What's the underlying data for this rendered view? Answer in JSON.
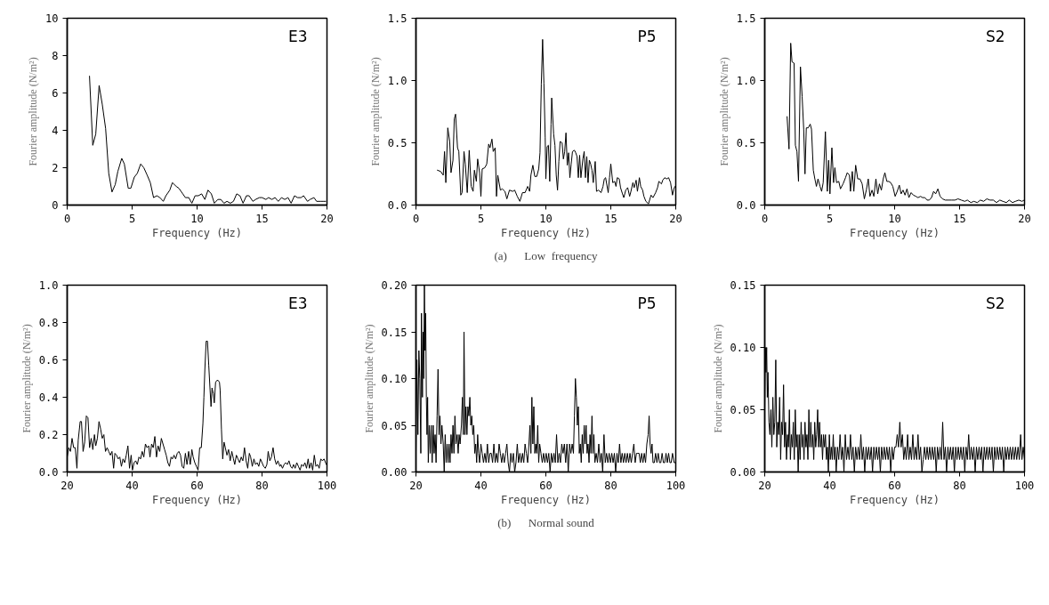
{
  "chart_data": [
    {
      "type": "line",
      "title": "E3",
      "xlabel": "Frequency (Hz)",
      "ylabel": "Fourier amplitude (N/m²)",
      "color": "#000000",
      "grid": false,
      "xlim": [
        0,
        20
      ],
      "ylim": [
        0,
        10
      ],
      "xticks": [
        0,
        5,
        10,
        15,
        20
      ],
      "yticks": [
        0,
        2,
        4,
        6,
        8,
        10
      ],
      "x": [
        1.72,
        1.97,
        2.2,
        2.46,
        2.7,
        2.96,
        3.2,
        3.45,
        3.7,
        3.9,
        4.2,
        4.4,
        4.7,
        4.9,
        5.17,
        5.4,
        5.66,
        5.9,
        6.16,
        6.4,
        6.65,
        6.9,
        7.14,
        7.4,
        7.6,
        7.9,
        8.1,
        8.4,
        8.6,
        8.9,
        9.1,
        9.36,
        9.6,
        9.85,
        10.1,
        10.35,
        10.6,
        10.84,
        11.1,
        11.33,
        11.6,
        11.83,
        12.07,
        12.3,
        12.56,
        12.8,
        13.05,
        13.3,
        13.54,
        13.8,
        14.0,
        14.3,
        14.5,
        14.8,
        15.0,
        15.3,
        15.5,
        15.76,
        16.0,
        16.25,
        16.5,
        16.75,
        17.0,
        17.24,
        17.5,
        17.73,
        18.0,
        18.2,
        18.5,
        18.7,
        19.0,
        19.2,
        19.5,
        19.7,
        19.9
      ],
      "values": [
        6.9,
        3.2,
        3.8,
        6.4,
        5.4,
        4.1,
        1.7,
        0.7,
        1.1,
        1.8,
        2.5,
        2.2,
        0.9,
        0.9,
        1.5,
        1.7,
        2.2,
        2.0,
        1.6,
        1.2,
        0.4,
        0.5,
        0.4,
        0.2,
        0.5,
        0.8,
        1.2,
        1.0,
        0.9,
        0.6,
        0.4,
        0.4,
        0.1,
        0.5,
        0.5,
        0.6,
        0.3,
        0.8,
        0.6,
        0.1,
        0.3,
        0.3,
        0.1,
        0.2,
        0.1,
        0.2,
        0.6,
        0.5,
        0.1,
        0.5,
        0.5,
        0.2,
        0.3,
        0.4,
        0.4,
        0.3,
        0.4,
        0.3,
        0.4,
        0.2,
        0.4,
        0.3,
        0.4,
        0.1,
        0.5,
        0.4,
        0.4,
        0.5,
        0.2,
        0.3,
        0.4,
        0.2,
        0.2,
        0.2,
        0.2
      ]
    },
    {
      "type": "line",
      "title": "P5",
      "xlabel": "Frequency (Hz)",
      "ylabel": "Fourier amplitude (N/m²)",
      "color": "#000000",
      "grid": false,
      "xlim": [
        0,
        20
      ],
      "ylim": [
        0,
        1.5
      ],
      "xticks": [
        0,
        5,
        10,
        15,
        20
      ],
      "yticks": [
        {
          "value": 0,
          "label": "0.0"
        },
        {
          "value": 0.5,
          "label": "0.5"
        },
        {
          "value": 1,
          "label": "1.0"
        },
        {
          "value": 1.5,
          "label": "1.5"
        }
      ],
      "annotations": [
        "(a)      Low  frequency"
      ],
      "x": [
        1.65,
        1.9,
        2.1,
        2.2,
        2.3,
        2.45,
        2.6,
        2.7,
        2.85,
        2.95,
        3.05,
        3.2,
        3.3,
        3.45,
        3.55,
        3.7,
        3.8,
        3.95,
        4.1,
        4.25,
        4.4,
        4.5,
        4.65,
        4.75,
        4.9,
        5.0,
        5.1,
        5.3,
        5.45,
        5.6,
        5.7,
        5.85,
        5.95,
        6.1,
        6.2,
        6.3,
        6.5,
        6.65,
        6.85,
        7.0,
        7.2,
        7.45,
        7.6,
        7.8,
        8.0,
        8.2,
        8.4,
        8.6,
        8.75,
        8.85,
        9.0,
        9.15,
        9.3,
        9.45,
        9.55,
        9.65,
        9.75,
        9.85,
        9.95,
        10.0,
        10.1,
        10.2,
        10.3,
        10.4,
        10.45,
        10.6,
        10.7,
        10.8,
        10.9,
        11.0,
        11.1,
        11.25,
        11.35,
        11.45,
        11.55,
        11.65,
        11.75,
        11.85,
        11.95,
        12.05,
        12.2,
        12.3,
        12.4,
        12.5,
        12.6,
        12.7,
        12.85,
        12.95,
        13.05,
        13.15,
        13.25,
        13.35,
        13.45,
        13.55,
        13.65,
        13.8,
        13.9,
        14.05,
        14.25,
        14.4,
        14.5,
        14.6,
        14.8,
        14.9,
        15.0,
        15.15,
        15.3,
        15.4,
        15.5,
        15.65,
        15.75,
        15.9,
        16.0,
        16.15,
        16.3,
        16.45,
        16.55,
        16.7,
        16.8,
        16.95,
        17.05,
        17.2,
        17.3,
        17.45,
        17.55,
        17.7,
        17.9,
        18.1,
        18.25,
        18.45,
        18.6,
        18.7,
        18.9,
        19.0,
        19.15,
        19.3,
        19.45,
        19.6,
        19.75,
        19.85,
        19.95
      ],
      "values": [
        0.28,
        0.27,
        0.24,
        0.43,
        0.18,
        0.62,
        0.51,
        0.26,
        0.36,
        0.69,
        0.73,
        0.46,
        0.43,
        0.08,
        0.1,
        0.43,
        0.33,
        0.1,
        0.44,
        0.15,
        0.11,
        0.28,
        0.19,
        0.37,
        0.26,
        0.07,
        0.29,
        0.3,
        0.33,
        0.49,
        0.46,
        0.53,
        0.43,
        0.46,
        0.07,
        0.24,
        0.12,
        0.13,
        0.11,
        0.05,
        0.12,
        0.11,
        0.12,
        0.07,
        0.03,
        0.1,
        0.1,
        0.15,
        0.11,
        0.24,
        0.32,
        0.23,
        0.23,
        0.29,
        0.42,
        0.97,
        1.33,
        0.98,
        0.54,
        0.21,
        0.47,
        0.48,
        0.19,
        0.65,
        0.86,
        0.57,
        0.48,
        0.24,
        0.12,
        0.35,
        0.51,
        0.5,
        0.37,
        0.43,
        0.58,
        0.32,
        0.42,
        0.22,
        0.33,
        0.43,
        0.44,
        0.42,
        0.39,
        0.22,
        0.4,
        0.22,
        0.37,
        0.43,
        0.22,
        0.39,
        0.18,
        0.36,
        0.33,
        0.28,
        0.18,
        0.35,
        0.11,
        0.12,
        0.1,
        0.15,
        0.21,
        0.22,
        0.1,
        0.22,
        0.33,
        0.18,
        0.19,
        0.15,
        0.22,
        0.21,
        0.14,
        0.09,
        0.06,
        0.12,
        0.14,
        0.07,
        0.11,
        0.18,
        0.14,
        0.2,
        0.11,
        0.22,
        0.15,
        0.12,
        0.07,
        0.03,
        0.01,
        0.08,
        0.06,
        0.1,
        0.14,
        0.19,
        0.17,
        0.2,
        0.22,
        0.21,
        0.22,
        0.18,
        0.08,
        0.13,
        0.15
      ]
    },
    {
      "type": "line",
      "title": "S2",
      "xlabel": "Frequency (Hz)",
      "ylabel": "Fourier amplitude (N/m²)",
      "color": "#000000",
      "grid": false,
      "xlim": [
        0,
        20
      ],
      "ylim": [
        0,
        1.5
      ],
      "xticks": [
        0,
        5,
        10,
        15,
        20
      ],
      "yticks": [
        {
          "value": 0,
          "label": "0.0"
        },
        {
          "value": 0.5,
          "label": "0.5"
        },
        {
          "value": 1,
          "label": "1.0"
        },
        {
          "value": 1.5,
          "label": "1.5"
        }
      ],
      "x": [
        1.72,
        1.87,
        2.0,
        2.1,
        2.26,
        2.36,
        2.48,
        2.6,
        2.75,
        2.88,
        3.0,
        3.1,
        3.2,
        3.35,
        3.5,
        3.6,
        3.74,
        3.86,
        3.98,
        4.1,
        4.26,
        4.38,
        4.5,
        4.67,
        4.82,
        4.92,
        5.02,
        5.17,
        5.3,
        5.4,
        5.53,
        5.7,
        5.83,
        6.03,
        6.22,
        6.35,
        6.52,
        6.6,
        6.74,
        6.86,
        7.0,
        7.16,
        7.33,
        7.5,
        7.67,
        7.82,
        7.97,
        8.1,
        8.26,
        8.4,
        8.56,
        8.7,
        8.83,
        8.98,
        9.12,
        9.25,
        9.4,
        9.55,
        9.7,
        9.86,
        10.04,
        10.2,
        10.36,
        10.5,
        10.65,
        10.8,
        10.95,
        11.1,
        11.27,
        11.44,
        11.64,
        11.8,
        12.0,
        12.15,
        12.33,
        12.5,
        12.67,
        12.84,
        13.0,
        13.16,
        13.33,
        13.5,
        13.68,
        13.9,
        14.15,
        14.4,
        14.64,
        14.88,
        15.13,
        15.4,
        15.6,
        15.87,
        16.1,
        16.36,
        16.6,
        16.85,
        17.1,
        17.34,
        17.6,
        17.84,
        18.1,
        18.33,
        18.6,
        18.82,
        19.07,
        19.3,
        19.56,
        19.8,
        19.98
      ],
      "values": [
        0.71,
        0.45,
        1.3,
        1.15,
        1.14,
        0.48,
        0.43,
        0.19,
        1.11,
        0.87,
        0.61,
        0.25,
        0.62,
        0.62,
        0.65,
        0.61,
        0.28,
        0.21,
        0.15,
        0.21,
        0.15,
        0.11,
        0.18,
        0.59,
        0.11,
        0.36,
        0.09,
        0.46,
        0.18,
        0.3,
        0.18,
        0.19,
        0.13,
        0.17,
        0.22,
        0.26,
        0.24,
        0.11,
        0.27,
        0.11,
        0.32,
        0.21,
        0.21,
        0.17,
        0.05,
        0.12,
        0.21,
        0.07,
        0.12,
        0.07,
        0.21,
        0.09,
        0.17,
        0.12,
        0.21,
        0.26,
        0.19,
        0.19,
        0.18,
        0.15,
        0.07,
        0.11,
        0.16,
        0.09,
        0.12,
        0.08,
        0.13,
        0.06,
        0.1,
        0.08,
        0.07,
        0.06,
        0.07,
        0.06,
        0.06,
        0.04,
        0.04,
        0.06,
        0.11,
        0.09,
        0.13,
        0.07,
        0.05,
        0.04,
        0.04,
        0.04,
        0.04,
        0.05,
        0.04,
        0.03,
        0.04,
        0.02,
        0.03,
        0.02,
        0.04,
        0.03,
        0.05,
        0.04,
        0.04,
        0.02,
        0.04,
        0.03,
        0.02,
        0.04,
        0.02,
        0.03,
        0.04,
        0.03,
        0.04
      ]
    },
    {
      "type": "line",
      "title": "E3",
      "xlabel": "Frequency (Hz)",
      "ylabel": "Fourier amplitude (N/m²)",
      "color": "#000000",
      "grid": false,
      "xlim": [
        20,
        100
      ],
      "ylim": [
        0,
        1
      ],
      "xticks": [
        20,
        40,
        60,
        80,
        100
      ],
      "yticks": [
        {
          "value": 0,
          "label": "0.0"
        },
        {
          "value": 0.2,
          "label": "0.2"
        },
        {
          "value": 0.4,
          "label": "0.4"
        },
        {
          "value": 0.6,
          "label": "0.6"
        },
        {
          "value": 0.8,
          "label": "0.8"
        },
        {
          "value": 1,
          "label": "1.0"
        }
      ],
      "x": [
        20.0,
        20.5,
        21,
        21.5,
        22,
        22.5,
        23,
        23.4,
        24,
        24.4,
        24.9,
        25.4,
        25.9,
        26.4,
        26.9,
        27.4,
        27.9,
        28.4,
        28.8,
        29.3,
        29.8,
        30.3,
        30.8,
        31.3,
        31.8,
        32.3,
        32.8,
        33.3,
        33.8,
        34.3,
        34.7,
        35.2,
        35.7,
        36.2,
        36.7,
        37.2,
        37.7,
        38.2,
        38.7,
        39.2,
        39.7,
        40.1,
        40.6,
        41.1,
        41.6,
        42.1,
        42.6,
        43.1,
        43.6,
        44.1,
        44.6,
        45.1,
        45.5,
        46,
        46.5,
        47,
        47.5,
        48,
        48.5,
        49,
        49.5,
        50,
        50.5,
        51,
        51.5,
        52,
        52.4,
        52.9,
        53.4,
        53.9,
        54.4,
        54.9,
        55.4,
        55.9,
        56.4,
        56.9,
        57.4,
        57.9,
        58.4,
        58.8,
        59.3,
        59.8,
        60.3,
        60.8,
        61.3,
        61.8,
        62.1,
        62.4,
        62.8,
        63.2,
        63.6,
        64.0,
        64.3,
        64.6,
        65.0,
        65.3,
        65.7,
        66.1,
        66.5,
        66.9,
        67.1,
        67.5,
        67.9,
        68.3,
        68.7,
        69.2,
        69.7,
        70.2,
        70.7,
        71.2,
        71.6,
        72.1,
        72.6,
        73.1,
        73.6,
        74.1,
        74.6,
        75.1,
        75.6,
        76.1,
        76.5,
        77,
        77.5,
        78,
        78.5,
        79,
        79.5,
        80,
        80.5,
        81,
        81.5,
        81.9,
        82.4,
        82.9,
        83.4,
        83.9,
        84.4,
        84.9,
        85.5,
        85.8,
        86.3,
        86.8,
        87.3,
        87.8,
        88.3,
        88.8,
        89.3,
        89.7,
        90.2,
        90.7,
        91.2,
        91.7,
        92.2,
        92.7,
        93.2,
        93.7,
        94.2,
        94.6,
        95.1,
        95.6,
        96.1,
        96.6,
        97.1,
        97.6,
        98.1,
        98.6,
        99.1,
        99.8
      ],
      "values": [
        0.08,
        0.13,
        0.11,
        0.18,
        0.13,
        0.13,
        0.02,
        0.17,
        0.27,
        0.27,
        0.11,
        0.16,
        0.3,
        0.29,
        0.13,
        0.18,
        0.12,
        0.2,
        0.14,
        0.18,
        0.27,
        0.23,
        0.18,
        0.2,
        0.11,
        0.13,
        0.11,
        0.09,
        0.11,
        0.02,
        0.1,
        0.09,
        0.07,
        0.08,
        0.03,
        0.07,
        0.05,
        0.09,
        0.14,
        0.02,
        0.09,
        0.01,
        0.05,
        0.06,
        0.04,
        0.08,
        0.07,
        0.11,
        0.08,
        0.15,
        0.13,
        0.14,
        0.08,
        0.15,
        0.13,
        0.19,
        0.08,
        0.14,
        0.11,
        0.18,
        0.15,
        0.12,
        0.09,
        0.05,
        0.03,
        0.08,
        0.07,
        0.09,
        0.07,
        0.1,
        0.11,
        0.09,
        0.03,
        0.02,
        0.1,
        0.04,
        0.11,
        0.04,
        0.12,
        0.08,
        0.05,
        0.03,
        0.01,
        0.13,
        0.13,
        0.26,
        0.4,
        0.55,
        0.7,
        0.7,
        0.57,
        0.44,
        0.35,
        0.45,
        0.42,
        0.37,
        0.48,
        0.49,
        0.49,
        0.48,
        0.44,
        0.23,
        0.07,
        0.16,
        0.13,
        0.09,
        0.12,
        0.06,
        0.11,
        0.07,
        0.04,
        0.09,
        0.07,
        0.05,
        0.08,
        0.06,
        0.13,
        0.06,
        0.02,
        0.1,
        0.08,
        0.03,
        0.07,
        0.04,
        0.05,
        0.03,
        0.07,
        0.05,
        0.03,
        0.02,
        0.04,
        0.11,
        0.06,
        0.08,
        0.13,
        0.07,
        0.04,
        0.06,
        0.03,
        0.04,
        0.02,
        0.04,
        0.05,
        0.04,
        0.06,
        0.03,
        0.02,
        0.04,
        0.02,
        0.05,
        0.03,
        0.01,
        0.04,
        0.03,
        0.05,
        0.02,
        0.07,
        0.02,
        0.05,
        0.01,
        0.09,
        0.03,
        0.04,
        0.02,
        0.07,
        0.06,
        0.07,
        0.04
      ]
    },
    {
      "type": "line",
      "title": "P5",
      "xlabel": "Frequency (Hz)",
      "ylabel": "Fourier amplitude (N/m²)",
      "color": "#000000",
      "grid": false,
      "xlim": [
        20,
        100
      ],
      "ylim": [
        0,
        0.2
      ],
      "xticks": [
        20,
        40,
        60,
        80,
        100
      ],
      "yticks": [
        {
          "value": 0,
          "label": "0.00"
        },
        {
          "value": 0.05,
          "label": "0.05"
        },
        {
          "value": 0.1,
          "label": "0.10"
        },
        {
          "value": 0.15,
          "label": "0.15"
        },
        {
          "value": 0.2,
          "label": "0.20"
        }
      ],
      "annotations": [
        "(b)      Normal sound"
      ],
      "x": [
        20.0,
        20.3,
        20.6,
        20.9,
        21.2,
        21.5,
        21.7,
        22.0,
        22.2,
        22.4,
        22.6,
        22.8,
        23.0,
        23.2,
        23.4,
        23.6,
        23.8,
        24.1,
        24.4,
        24.7,
        25.0,
        25.3,
        25.6,
        25.9,
        26.2,
        26.5,
        26.8,
        27.1,
        27.4,
        27.7,
        28.0,
        28.4,
        28.7,
        29.0,
        29.3,
        29.6,
        29.9,
        30.2,
        30.5,
        30.8,
        31.1,
        31.4,
        31.7,
        32.0,
        32.3,
        32.7,
        33.0,
        33.3,
        33.6,
        34.0,
        34.3,
        34.6,
        34.8,
        35.1,
        35.4,
        35.7,
        36.0,
        36.3,
        36.6,
        36.9,
        37.2,
        37.5,
        37.8,
        38.1,
        38.4,
        38.7,
        39.0,
        39.3,
        39.6,
        40.0,
        40.4,
        40.8,
        41.2,
        41.6,
        42.0,
        42.4,
        42.8,
        43.2,
        43.6,
        44.0,
        44.4,
        44.8,
        45.2,
        45.6,
        46.0,
        46.4,
        46.8,
        47.2,
        47.6,
        48.0,
        48.4,
        48.8,
        49.2,
        49.6,
        50.0,
        50.4,
        50.8,
        51.2,
        51.6,
        52.0,
        52.4,
        52.8,
        53.2,
        53.6,
        54.0,
        54.4,
        54.8,
        55.1,
        55.4,
        55.7,
        56.0,
        56.3,
        56.6,
        56.9,
        57.2,
        57.5,
        57.8,
        58.1,
        58.5,
        58.9,
        59.3,
        59.7,
        60.1,
        60.5,
        60.9,
        61.3,
        61.7,
        62.1,
        62.5,
        62.9,
        63.3,
        63.7,
        64.1,
        64.5,
        64.9,
        65.3,
        65.7,
        66.1,
        66.5,
        66.9,
        67.3,
        67.7,
        68.1,
        68.5,
        68.8,
        69.1,
        69.4,
        69.7,
        70.0,
        70.3,
        70.6,
        70.9,
        71.2,
        71.5,
        71.8,
        72.1,
        72.4,
        72.7,
        73.0,
        73.3,
        73.6,
        73.9,
        74.2,
        74.5,
        74.8,
        75.1,
        75.5,
        75.9,
        76.3,
        76.7,
        77.1,
        77.5,
        77.9,
        78.3,
        78.7,
        79.1,
        79.5,
        79.9,
        80.3,
        80.7,
        81.1,
        81.5,
        81.9,
        82.3,
        82.7,
        83.1,
        83.5,
        83.9,
        84.3,
        84.7,
        85.1,
        85.5,
        85.9,
        86.3,
        86.7,
        87.1,
        87.5,
        87.9,
        88.3,
        88.7,
        89.1,
        89.5,
        89.9,
        90.3,
        90.7,
        91.1,
        91.5,
        91.8,
        92.1,
        92.4,
        92.7,
        93.0,
        93.4,
        93.8,
        94.2,
        94.6,
        95.0,
        95.4,
        95.8,
        96.2,
        96.6,
        97.0,
        97.4,
        97.8,
        98.2,
        98.6,
        99.0,
        99.5,
        100.0
      ],
      "values": [
        0.02,
        0.12,
        0.04,
        0.13,
        0.1,
        0.02,
        0.17,
        0.08,
        0.15,
        0.1,
        0.2,
        0.13,
        0.17,
        0.08,
        0.04,
        0.08,
        0.01,
        0.05,
        0.02,
        0.05,
        0.01,
        0.05,
        0.02,
        0.04,
        0.01,
        0.06,
        0.11,
        0.04,
        0.06,
        0.03,
        0.05,
        0.03,
        0.0,
        0.04,
        0.01,
        0.03,
        0.01,
        0.03,
        0.01,
        0.04,
        0.02,
        0.05,
        0.02,
        0.06,
        0.03,
        0.04,
        0.02,
        0.04,
        0.03,
        0.05,
        0.08,
        0.04,
        0.15,
        0.04,
        0.07,
        0.04,
        0.07,
        0.06,
        0.08,
        0.05,
        0.06,
        0.04,
        0.05,
        0.02,
        0.03,
        0.01,
        0.04,
        0.02,
        0.01,
        0.03,
        0.02,
        0.01,
        0.02,
        0.01,
        0.03,
        0.01,
        0.02,
        0.02,
        0.01,
        0.03,
        0.01,
        0.02,
        0.01,
        0.03,
        0.02,
        0.01,
        0.02,
        0.01,
        0.02,
        0.03,
        0.01,
        0.0,
        0.02,
        0.01,
        0.02,
        0.0,
        0.01,
        0.03,
        0.01,
        0.02,
        0.01,
        0.02,
        0.01,
        0.03,
        0.02,
        0.01,
        0.03,
        0.05,
        0.02,
        0.08,
        0.03,
        0.07,
        0.02,
        0.03,
        0.02,
        0.05,
        0.01,
        0.03,
        0.02,
        0.01,
        0.02,
        0.01,
        0.02,
        0.01,
        0.02,
        0.0,
        0.02,
        0.01,
        0.02,
        0.01,
        0.04,
        0.01,
        0.02,
        0.01,
        0.03,
        0.02,
        0.03,
        0.01,
        0.03,
        0.0,
        0.03,
        0.02,
        0.03,
        0.02,
        0.06,
        0.1,
        0.08,
        0.05,
        0.07,
        0.02,
        0.03,
        0.01,
        0.04,
        0.02,
        0.05,
        0.03,
        0.05,
        0.02,
        0.03,
        0.01,
        0.04,
        0.02,
        0.06,
        0.02,
        0.04,
        0.01,
        0.02,
        0.01,
        0.03,
        0.01,
        0.02,
        0.0,
        0.04,
        0.01,
        0.02,
        0.01,
        0.02,
        0.01,
        0.02,
        0.01,
        0.02,
        0.0,
        0.02,
        0.01,
        0.03,
        0.01,
        0.02,
        0.01,
        0.02,
        0.01,
        0.02,
        0.01,
        0.02,
        0.01,
        0.02,
        0.03,
        0.01,
        0.02,
        0.02,
        0.02,
        0.01,
        0.02,
        0.01,
        0.02,
        0.01,
        0.03,
        0.04,
        0.06,
        0.03,
        0.02,
        0.03,
        0.01,
        0.01,
        0.02,
        0.01,
        0.02,
        0.01,
        0.01,
        0.02,
        0.01,
        0.01,
        0.02,
        0.01,
        0.02,
        0.01,
        0.01,
        0.02,
        0.01,
        0.01
      ]
    },
    {
      "type": "line",
      "title": "S2",
      "xlabel": "Frequency (Hz)",
      "ylabel": "Fourier amplitude (N/m²)",
      "color": "#000000",
      "grid": false,
      "xlim": [
        20,
        100
      ],
      "ylim": [
        0,
        0.15
      ],
      "xticks": [
        20,
        40,
        60,
        80,
        100
      ],
      "yticks": [
        {
          "value": 0,
          "label": "0.00"
        },
        {
          "value": 0.05,
          "label": "0.05"
        },
        {
          "value": 0.1,
          "label": "0.10"
        },
        {
          "value": 0.15,
          "label": "0.15"
        }
      ],
      "x": [
        20.0,
        20.2,
        20.4,
        20.6,
        20.8,
        21.0,
        21.3,
        21.6,
        21.9,
        22.2,
        22.5,
        22.8,
        23.1,
        23.4,
        23.7,
        24.0,
        24.3,
        24.6,
        24.9,
        25.2,
        25.5,
        25.8,
        26.1,
        26.4,
        26.7,
        27.0,
        27.3,
        27.6,
        27.9,
        28.2,
        28.5,
        28.8,
        29.1,
        29.4,
        29.7,
        30.0,
        30.3,
        30.6,
        30.9,
        31.2,
        31.5,
        31.8,
        32.1,
        32.4,
        32.7,
        33.0,
        33.3,
        33.6,
        33.9,
        34.2,
        34.5,
        34.8,
        35.1,
        35.4,
        35.7,
        36.0,
        36.3,
        36.6,
        36.9,
        37.2,
        37.5,
        37.8,
        38.1,
        38.4,
        38.7,
        39.0,
        39.3,
        39.6,
        39.9,
        40.2,
        40.5,
        40.8,
        41.1,
        41.4,
        41.7,
        42.0,
        42.4,
        42.8,
        43.2,
        43.6,
        44.0,
        44.4,
        44.8,
        45.2,
        45.6,
        46.0,
        46.4,
        46.8,
        47.2,
        47.6,
        48.0,
        48.4,
        48.8,
        49.2,
        49.6,
        50.0,
        50.4,
        50.8,
        51.2,
        51.6,
        52.0,
        52.4,
        52.8,
        53.2,
        53.6,
        54.0,
        54.4,
        54.8,
        55.2,
        55.6,
        56.0,
        56.4,
        56.8,
        57.2,
        57.6,
        58.0,
        58.4,
        58.8,
        59.2,
        59.6,
        60.0,
        60.4,
        60.8,
        61.2,
        61.6,
        62.0,
        62.4,
        62.8,
        63.2,
        63.6,
        64.0,
        64.4,
        64.8,
        65.2,
        65.6,
        66.0,
        66.4,
        66.8,
        67.2,
        67.6,
        68.0,
        68.4,
        68.8,
        69.2,
        69.6,
        70.0,
        70.4,
        70.8,
        71.2,
        71.6,
        72.0,
        72.4,
        72.8,
        73.2,
        73.6,
        74.0,
        74.4,
        74.8,
        75.2,
        75.6,
        76.0,
        76.4,
        76.8,
        77.2,
        77.6,
        78.0,
        78.4,
        78.8,
        79.2,
        79.6,
        80.0,
        80.4,
        80.8,
        81.2,
        81.6,
        82.0,
        82.4,
        82.8,
        83.2,
        83.6,
        84.0,
        84.4,
        84.8,
        85.2,
        85.6,
        86.0,
        86.4,
        86.8,
        87.2,
        87.6,
        88.0,
        88.4,
        88.8,
        89.2,
        89.6,
        90.0,
        90.4,
        90.8,
        91.2,
        91.6,
        92.0,
        92.4,
        92.8,
        93.2,
        93.6,
        94.0,
        94.4,
        94.8,
        95.2,
        95.6,
        96.0,
        96.4,
        96.8,
        97.2,
        97.6,
        98.0,
        98.4,
        98.8,
        99.2,
        99.6,
        100.0
      ],
      "values": [
        0.05,
        0.1,
        0.08,
        0.1,
        0.06,
        0.08,
        0.04,
        0.03,
        0.05,
        0.02,
        0.06,
        0.03,
        0.04,
        0.09,
        0.02,
        0.04,
        0.03,
        0.06,
        0.01,
        0.04,
        0.03,
        0.07,
        0.02,
        0.04,
        0.01,
        0.03,
        0.02,
        0.05,
        0.01,
        0.03,
        0.02,
        0.04,
        0.01,
        0.05,
        0.02,
        0.03,
        0.0,
        0.03,
        0.01,
        0.04,
        0.02,
        0.03,
        0.01,
        0.04,
        0.02,
        0.03,
        0.01,
        0.05,
        0.02,
        0.04,
        0.02,
        0.03,
        0.01,
        0.04,
        0.02,
        0.03,
        0.05,
        0.02,
        0.04,
        0.02,
        0.03,
        0.01,
        0.03,
        0.02,
        0.03,
        0.01,
        0.02,
        0.0,
        0.03,
        0.01,
        0.02,
        0.01,
        0.03,
        0.01,
        0.02,
        0.0,
        0.02,
        0.01,
        0.03,
        0.01,
        0.02,
        0.0,
        0.03,
        0.01,
        0.02,
        0.01,
        0.03,
        0.01,
        0.02,
        0.0,
        0.02,
        0.01,
        0.02,
        0.01,
        0.03,
        0.01,
        0.02,
        0.0,
        0.02,
        0.01,
        0.02,
        0.01,
        0.02,
        0.0,
        0.02,
        0.01,
        0.02,
        0.01,
        0.02,
        0.0,
        0.02,
        0.01,
        0.02,
        0.01,
        0.02,
        0.01,
        0.02,
        0.0,
        0.02,
        0.01,
        0.02,
        0.02,
        0.03,
        0.02,
        0.04,
        0.02,
        0.03,
        0.01,
        0.02,
        0.01,
        0.03,
        0.01,
        0.02,
        0.01,
        0.03,
        0.01,
        0.02,
        0.01,
        0.03,
        0.01,
        0.02,
        0.0,
        0.01,
        0.02,
        0.01,
        0.02,
        0.01,
        0.02,
        0.01,
        0.02,
        0.01,
        0.02,
        0.0,
        0.02,
        0.01,
        0.02,
        0.01,
        0.04,
        0.01,
        0.02,
        0.0,
        0.02,
        0.01,
        0.02,
        0.01,
        0.02,
        0.0,
        0.02,
        0.01,
        0.02,
        0.01,
        0.02,
        0.01,
        0.02,
        0.0,
        0.02,
        0.01,
        0.03,
        0.01,
        0.02,
        0.01,
        0.02,
        0.0,
        0.02,
        0.01,
        0.02,
        0.01,
        0.02,
        0.0,
        0.02,
        0.01,
        0.02,
        0.01,
        0.02,
        0.01,
        0.02,
        0.0,
        0.02,
        0.01,
        0.02,
        0.01,
        0.02,
        0.01,
        0.02,
        0.0,
        0.02,
        0.01,
        0.02,
        0.01,
        0.02,
        0.01,
        0.02,
        0.01,
        0.02,
        0.01,
        0.02,
        0.01,
        0.03,
        0.01,
        0.02,
        0.01
      ]
    }
  ]
}
